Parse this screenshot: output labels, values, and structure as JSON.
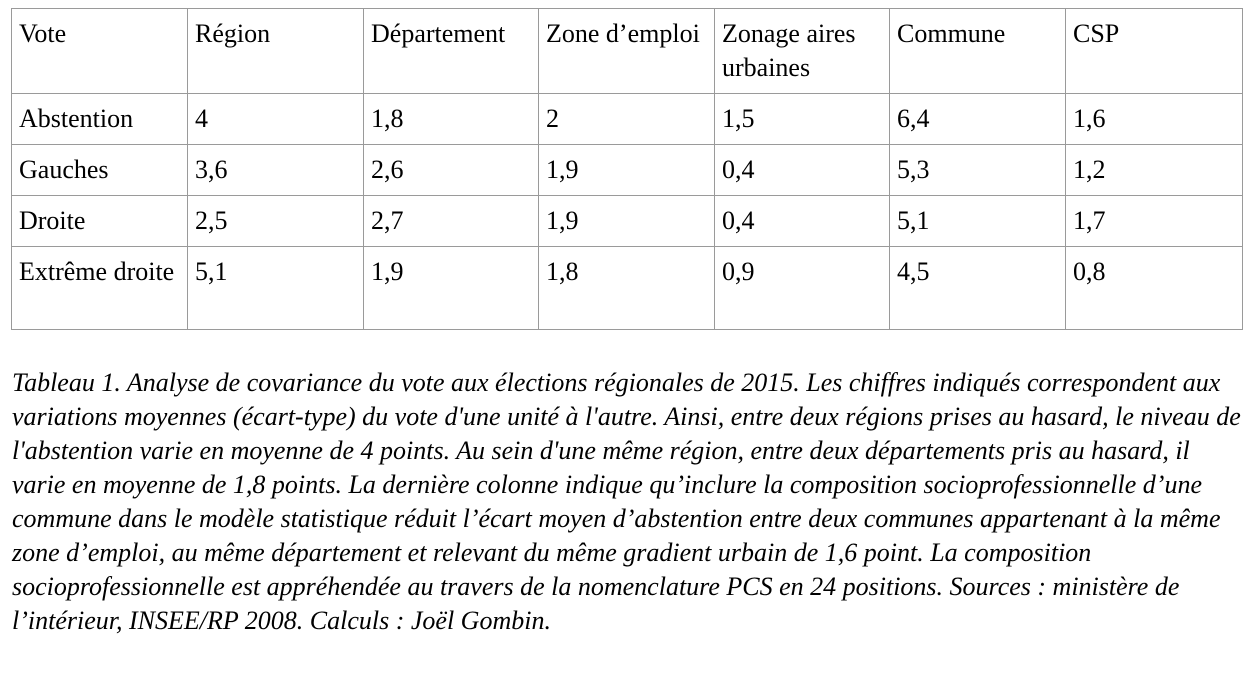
{
  "table": {
    "headers": [
      "Vote",
      "Région",
      "Département",
      "Zone d’emploi",
      "Zonage aires urbaines",
      "Commune",
      "CSP"
    ],
    "rows": [
      [
        "Abstention",
        "4",
        "1,8",
        "2",
        "1,5",
        "6,4",
        "1,6"
      ],
      [
        "Gauches",
        "3,6",
        "2,6",
        "1,9",
        "0,4",
        "5,3",
        "1,2"
      ],
      [
        "Droite",
        "2,5",
        "2,7",
        "1,9",
        "0,4",
        "5,1",
        "1,7"
      ],
      [
        "Extrême droite",
        "5,1",
        "1,9",
        "1,8",
        "0,9",
        "4,5",
        "0,8"
      ]
    ]
  },
  "caption": "Tableau 1. Analyse de covariance du vote aux élections régionales de 2015. Les chiffres indiqués correspondent aux variations moyennes (écart-type) du vote d'une unité à l'autre. Ainsi, entre deux régions prises au hasard, le niveau de l'abstention varie en moyenne de 4 points. Au sein d'une même région, entre deux départements pris au hasard, il varie en moyenne de 1,8 points. La dernière colonne indique qu’inclure la composition socioprofessionnelle d’une commune dans le modèle statistique réduit l’écart moyen d’abstention entre deux communes appartenant à la même zone d’emploi, au même département et relevant du même gradient urbain de 1,6 point. La composition socioprofessionnelle est appréhendée au travers de la nomenclature PCS en 24 positions. Sources : ministère de l’intérieur, INSEE/RP 2008. Calculs : Joël Gombin."
}
